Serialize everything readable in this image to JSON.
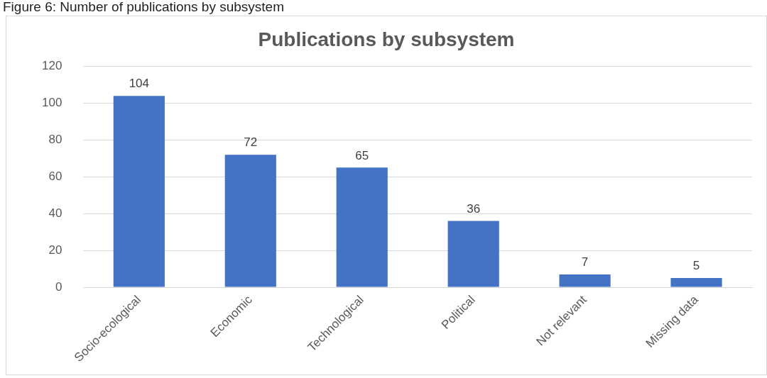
{
  "chart_data": {
    "type": "bar",
    "title": "Publications by subsystem",
    "annotations": [
      "Figure 6: Number of publications by subsystem"
    ],
    "categories": [
      "Socio-ecological",
      "Economic",
      "Technological",
      "Political",
      "Not relevant",
      "Missing data"
    ],
    "values": [
      104,
      72,
      65,
      36,
      7,
      5
    ],
    "color": "#4472c4",
    "ylim": [
      0,
      120
    ],
    "yticks": [
      0,
      20,
      40,
      60,
      80,
      100,
      120
    ],
    "grid": "y",
    "data_labels": true
  }
}
